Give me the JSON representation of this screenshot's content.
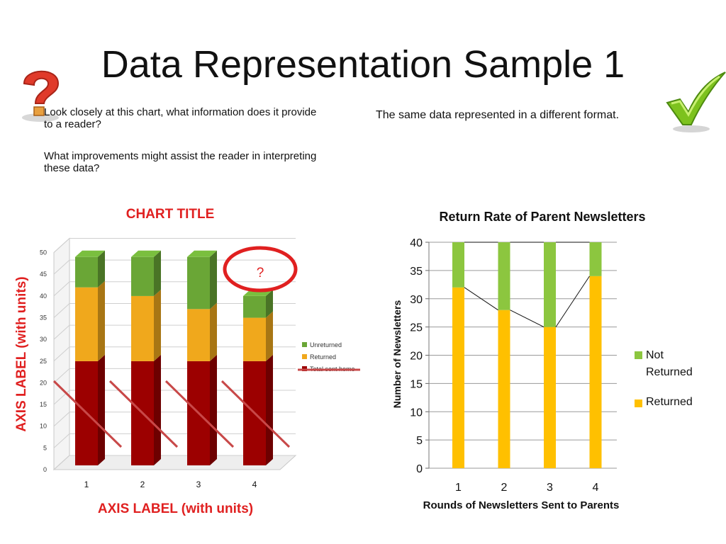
{
  "slide": {
    "title": "Data Representation Sample 1",
    "question1": "Look closely at this chart, what information does it provide to a reader?",
    "question2": "What improvements might assist the reader in interpreting these data?",
    "note": "The same data represented in a different format."
  },
  "icons": {
    "left": "question-mark-icon",
    "right": "checkmark-icon"
  },
  "colors": {
    "accent_red": "#e02020",
    "green": "#8cc63f",
    "yellow": "#ffc000",
    "dark_red": "#9c0000",
    "left_green": "#6aa636",
    "left_yellow": "#f0a81c"
  },
  "chart_data": [
    {
      "type": "bar",
      "stacked": true,
      "three_d": true,
      "title": "CHART TITLE",
      "xlabel": "AXIS LABEL (with units)",
      "ylabel": "AXIS LABEL (with units)",
      "categories": [
        "1",
        "2",
        "3",
        "4"
      ],
      "ylim": [
        0,
        50
      ],
      "yticks": [
        "0",
        "5",
        "10",
        "15",
        "20",
        "25",
        "30",
        "35",
        "40",
        "45",
        "50"
      ],
      "series": [
        {
          "name": "Total sent home",
          "values": [
            24,
            24,
            24,
            24
          ]
        },
        {
          "name": "Returned",
          "values": [
            17,
            15,
            12,
            10
          ]
        },
        {
          "name": "Unreturned",
          "values": [
            7,
            9,
            12,
            5
          ]
        }
      ],
      "legend": [
        "Unreturned",
        "Returned",
        "Total sent home"
      ],
      "legend_position": "right",
      "grid": true,
      "annotation": "?"
    },
    {
      "type": "bar",
      "stacked": true,
      "title": "Return Rate of Parent Newsletters",
      "xlabel": "Rounds of Newsletters Sent to Parents",
      "ylabel": "Number of Newsletters",
      "categories": [
        "1",
        "2",
        "3",
        "4"
      ],
      "ylim": [
        0,
        40
      ],
      "yticks": [
        "0",
        "5",
        "10",
        "15",
        "20",
        "25",
        "30",
        "35",
        "40"
      ],
      "series": [
        {
          "name": "Returned",
          "values": [
            32,
            28,
            25,
            34
          ]
        },
        {
          "name": "Not Returned",
          "values": [
            8,
            12,
            15,
            6
          ]
        }
      ],
      "legend_position": "right",
      "legend_not_returned": "Not",
      "legend_not_returned_2": "Returned",
      "legend_returned": "Returned",
      "grid": true
    }
  ]
}
